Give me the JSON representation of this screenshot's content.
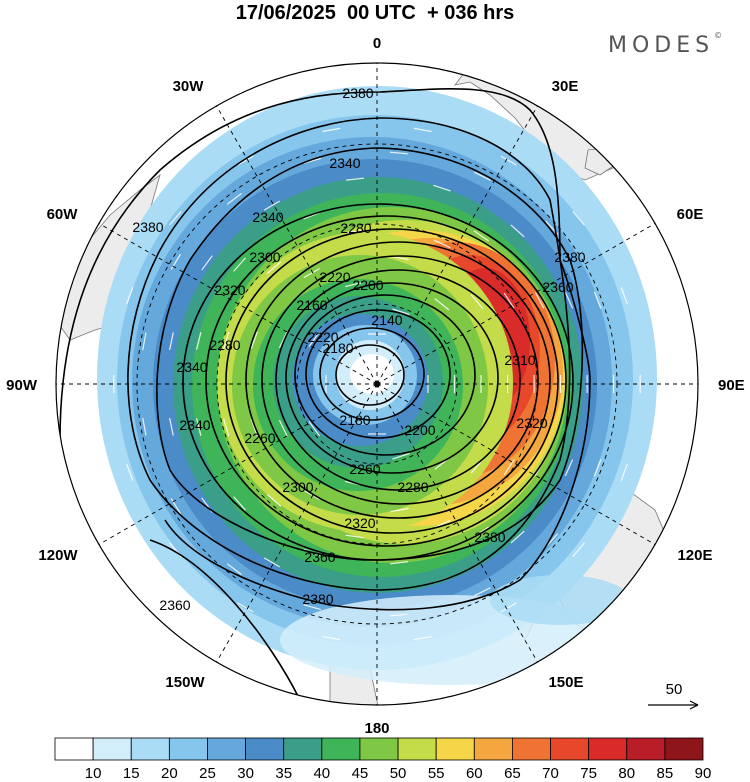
{
  "title": "17/06/2025  00 UTC  + 036 hrs",
  "brand": "MODES",
  "brand_mark": "©",
  "longitude_labels": {
    "n": "0",
    "s": "180",
    "e": "90E",
    "w": "90W",
    "e30": "30E",
    "e60": "60E",
    "e120": "120E",
    "e150": "150E",
    "w30": "30W",
    "w60": "60W",
    "w120": "120W",
    "w150": "150W"
  },
  "contour_labels": [
    "2380",
    "2380",
    "2380",
    "2380",
    "2380",
    "2360",
    "2360",
    "2360",
    "2340",
    "2340",
    "2340",
    "2340",
    "2320",
    "2320",
    "2320",
    "2300",
    "2300",
    "2280",
    "2280",
    "2280",
    "2260",
    "2260",
    "2220",
    "2220",
    "2200",
    "2200",
    "2180",
    "2180",
    "2160",
    "2140",
    "2310"
  ],
  "vector_reference": "50",
  "colorbar": {
    "labels": [
      "10",
      "15",
      "20",
      "25",
      "30",
      "35",
      "40",
      "45",
      "50",
      "55",
      "60",
      "65",
      "70",
      "75",
      "80",
      "85",
      "90"
    ],
    "colors": [
      "#ffffff",
      "#d3eefb",
      "#aadcf5",
      "#86c5ec",
      "#64a8dc",
      "#4a8bc8",
      "#3a9e88",
      "#3fb459",
      "#7ec845",
      "#c5dc4a",
      "#f5d649",
      "#f4a63f",
      "#ef7433",
      "#e7482b",
      "#d82b2a",
      "#b81d28",
      "#8e1519"
    ]
  },
  "colors": {
    "land": "#ececec",
    "coast": "#777777",
    "contour": "#000000",
    "vector": "#ffffff"
  }
}
